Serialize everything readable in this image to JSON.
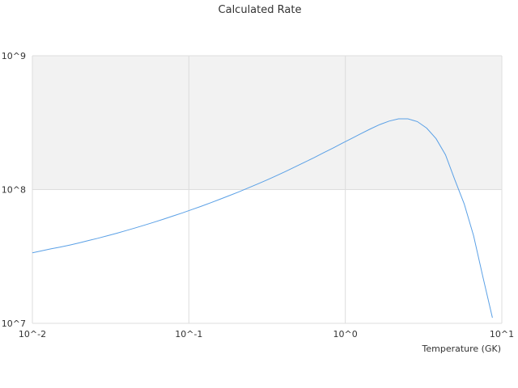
{
  "chart_data": {
    "type": "line",
    "title": "Calculated Rate",
    "xlabel": "Temperature (GK)",
    "ylabel": "",
    "xscale": "log",
    "yscale": "log",
    "xlim": [
      0.01,
      10
    ],
    "ylim": [
      10000000,
      1000000000
    ],
    "x_ticks": [
      "10^-2",
      "10^-1",
      "10^0",
      "10^1"
    ],
    "y_ticks": [
      "10^7",
      "10^8",
      "10^9"
    ],
    "grid": true,
    "band": {
      "from": 100000000,
      "to": 1000000000,
      "color": "#f2f2f2"
    },
    "series": [
      {
        "color": "#5aa0e6",
        "x": [
          0.01,
          0.0115,
          0.0131,
          0.0151,
          0.0174,
          0.02,
          0.0229,
          0.0263,
          0.0302,
          0.0347,
          0.0398,
          0.0457,
          0.0525,
          0.0603,
          0.0692,
          0.0794,
          0.0912,
          0.1047,
          0.1202,
          0.138,
          0.1585,
          0.182,
          0.2089,
          0.2399,
          0.2754,
          0.3162,
          0.3631,
          0.4169,
          0.4786,
          0.5495,
          0.631,
          0.7244,
          0.8318,
          0.955,
          1.096,
          1.259,
          1.445,
          1.66,
          1.905,
          2.188,
          2.512,
          2.884,
          3.311,
          3.802,
          4.365,
          5.012,
          5.754,
          6.607,
          7.586,
          8.71
        ],
        "y": [
          33700000,
          34900000,
          36000000,
          37200000,
          38500000,
          40000000,
          41600000,
          43300000,
          45200000,
          47200000,
          49400000,
          51800000,
          54400000,
          57200000,
          60200000,
          63500000,
          67000000,
          70900000,
          75100000,
          79700000,
          84700000,
          90200000,
          96200000,
          103000000,
          110000000,
          118000000,
          127000000,
          137000000,
          148000000,
          160000000,
          173000000,
          188000000,
          204000000,
          222000000,
          241000000,
          262000000,
          284000000,
          306000000,
          325000000,
          338000000,
          338000000,
          322000000,
          288000000,
          240000000,
          182000000,
          118000000,
          78000000,
          45000000,
          22000000,
          11000000
        ]
      }
    ]
  }
}
